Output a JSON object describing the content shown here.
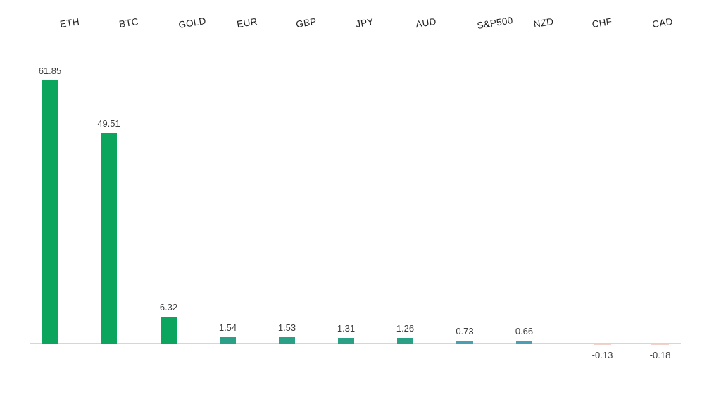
{
  "chart_data": {
    "type": "bar",
    "title": "",
    "xlabel": "",
    "ylabel": "",
    "categories": [
      "ETH",
      "BTC",
      "GOLD",
      "EUR",
      "GBP",
      "JPY",
      "AUD",
      "S&P500",
      "NZD",
      "CHF",
      "CAD"
    ],
    "values": [
      61.85,
      49.51,
      6.32,
      1.54,
      1.53,
      1.31,
      1.26,
      0.73,
      0.66,
      -0.13,
      -0.18
    ],
    "data_labels": [
      "61.85",
      "49.51",
      "6.32",
      "1.54",
      "1.53",
      "1.31",
      "1.26",
      "0.73",
      "0.66",
      "-0.13",
      "-0.18"
    ],
    "ylim": [
      -5,
      66
    ],
    "grid": false,
    "legend": false,
    "axis_labels_position": "top",
    "colors": {
      "high_positive": "#0ca55e",
      "mid_positive": "#2aa186",
      "low_positive": "#48a0b2",
      "negative": "#f3d3c9",
      "axis_line": "#d6d6d6",
      "category_label": "#1f1f1f",
      "value_label": "#3d3d3d"
    }
  }
}
